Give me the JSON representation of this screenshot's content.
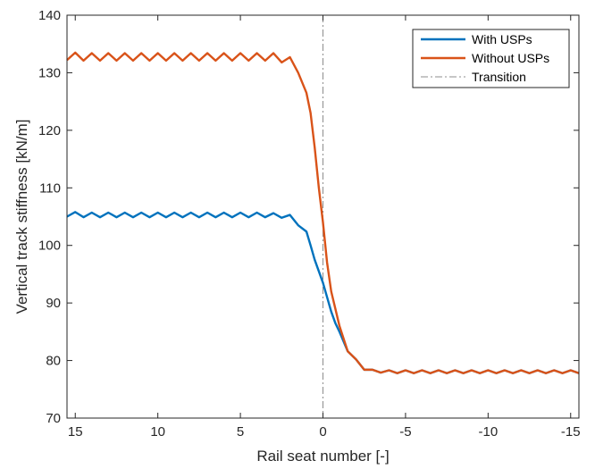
{
  "chart_data": {
    "type": "line",
    "xlabel": "Rail seat number [-]",
    "ylabel": "Vertical track stiffness [kN/m]",
    "xlim": [
      15.5,
      -15.5
    ],
    "ylim": [
      70,
      140
    ],
    "x_reversed": true,
    "xticks": [
      15,
      10,
      5,
      0,
      -5,
      -10,
      -15
    ],
    "xtick_labels": [
      "15",
      "10",
      "5",
      "0",
      "-5",
      "-10",
      "-15"
    ],
    "yticks": [
      70,
      80,
      90,
      100,
      110,
      120,
      130,
      140
    ],
    "ytick_labels": [
      "70",
      "80",
      "90",
      "100",
      "110",
      "120",
      "130",
      "140"
    ],
    "grid": false,
    "legend_position": "top-right",
    "transition": {
      "name": "Transition",
      "x": 0,
      "color": "#8c8c8c",
      "style": "dash-dot"
    },
    "series": [
      {
        "name": "With USPs",
        "color": "#0072BD",
        "x": [
          15.5,
          15,
          14.5,
          14,
          13.5,
          13,
          12.5,
          12,
          11.5,
          11,
          10.5,
          10,
          9.5,
          9,
          8.5,
          8,
          7.5,
          7,
          6.5,
          6,
          5.5,
          5,
          4.5,
          4,
          3.5,
          3,
          2.5,
          2,
          1.5,
          1,
          0.75,
          0.5,
          0.25,
          0,
          -0.25,
          -0.5,
          -0.75,
          -1,
          -1.5,
          -2,
          -2.5,
          -3,
          -3.5,
          -4,
          -4.5,
          -5,
          -5.5,
          -6,
          -6.5,
          -7,
          -7.5,
          -8,
          -8.5,
          -9,
          -9.5,
          -10,
          -10.5,
          -11,
          -11.5,
          -12,
          -12.5,
          -13,
          -13.5,
          -14,
          -14.5,
          -15,
          -15.5
        ],
        "values": [
          105.0,
          105.8,
          104.9,
          105.7,
          104.9,
          105.7,
          104.9,
          105.7,
          104.9,
          105.7,
          104.9,
          105.7,
          104.9,
          105.7,
          104.9,
          105.7,
          104.9,
          105.7,
          104.9,
          105.7,
          104.9,
          105.7,
          104.9,
          105.7,
          104.9,
          105.6,
          104.8,
          105.3,
          103.5,
          102.4,
          100.0,
          97.5,
          95.5,
          93.5,
          91.0,
          88.5,
          86.5,
          85.0,
          81.6,
          80.2,
          78.4,
          78.4,
          77.9,
          78.3,
          77.8,
          78.3,
          77.8,
          78.3,
          77.8,
          78.3,
          77.8,
          78.3,
          77.8,
          78.3,
          77.8,
          78.3,
          77.8,
          78.3,
          77.8,
          78.3,
          77.8,
          78.3,
          77.8,
          78.3,
          77.8,
          78.3,
          77.8
        ]
      },
      {
        "name": "Without USPs",
        "color": "#D95319",
        "x": [
          15.5,
          15,
          14.5,
          14,
          13.5,
          13,
          12.5,
          12,
          11.5,
          11,
          10.5,
          10,
          9.5,
          9,
          8.5,
          8,
          7.5,
          7,
          6.5,
          6,
          5.5,
          5,
          4.5,
          4,
          3.5,
          3,
          2.5,
          2,
          1.5,
          1,
          0.75,
          0.5,
          0.25,
          0,
          -0.25,
          -0.5,
          -0.75,
          -1,
          -1.5,
          -2,
          -2.5,
          -3,
          -3.5,
          -4,
          -4.5,
          -5,
          -5.5,
          -6,
          -6.5,
          -7,
          -7.5,
          -8,
          -8.5,
          -9,
          -9.5,
          -10,
          -10.5,
          -11,
          -11.5,
          -12,
          -12.5,
          -13,
          -13.5,
          -14,
          -14.5,
          -15,
          -15.5
        ],
        "values": [
          132.2,
          133.5,
          132.1,
          133.4,
          132.1,
          133.4,
          132.1,
          133.4,
          132.1,
          133.4,
          132.1,
          133.4,
          132.1,
          133.4,
          132.1,
          133.4,
          132.1,
          133.4,
          132.1,
          133.4,
          132.1,
          133.4,
          132.1,
          133.4,
          132.1,
          133.4,
          131.8,
          132.7,
          130.0,
          126.5,
          123.0,
          117.0,
          110.0,
          104.0,
          97.0,
          92.0,
          89.0,
          86.0,
          81.6,
          80.2,
          78.4,
          78.4,
          77.9,
          78.3,
          77.8,
          78.3,
          77.8,
          78.3,
          77.8,
          78.3,
          77.8,
          78.3,
          77.8,
          78.3,
          77.8,
          78.3,
          77.8,
          78.3,
          77.8,
          78.3,
          77.8,
          78.3,
          77.8,
          78.3,
          77.8,
          78.3,
          77.8
        ]
      }
    ]
  }
}
